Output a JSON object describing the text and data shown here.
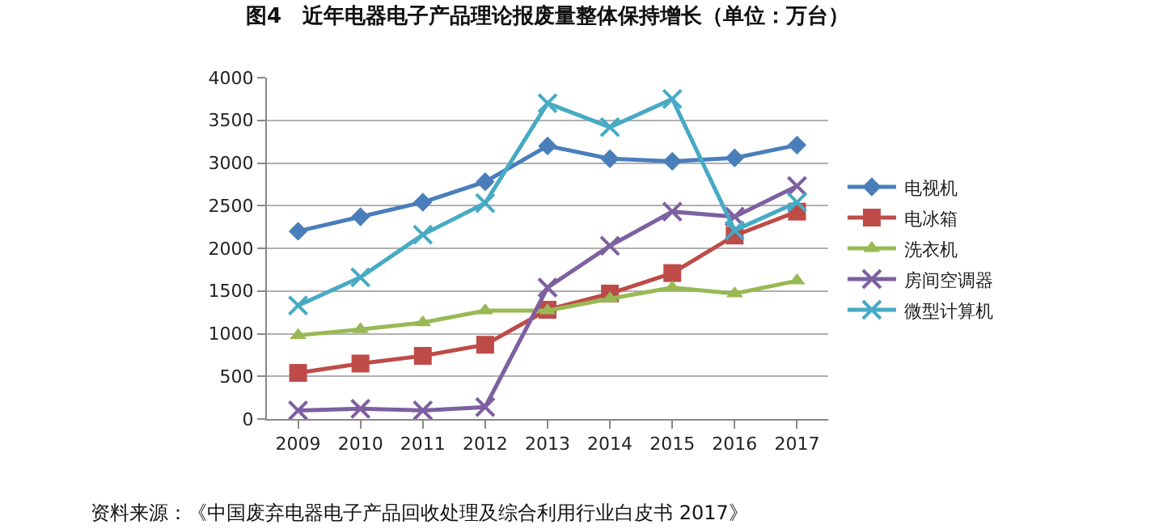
{
  "chart_data": {
    "type": "line",
    "title": "图4　近年电器电子产品理论报废量整体保持增长（单位：万台）",
    "categories": [
      "2009",
      "2010",
      "2011",
      "2012",
      "2013",
      "2014",
      "2015",
      "2016",
      "2017"
    ],
    "series": [
      {
        "name": "电视机",
        "color": "#4a7ebb",
        "marker": "diamond",
        "values": [
          2200,
          2370,
          2540,
          2780,
          3200,
          3050,
          3020,
          3060,
          3210
        ]
      },
      {
        "name": "电冰箱",
        "color": "#be4b48",
        "marker": "square",
        "values": [
          540,
          650,
          740,
          870,
          1280,
          1470,
          1710,
          2150,
          2430
        ]
      },
      {
        "name": "洗衣机",
        "color": "#98b954",
        "marker": "triangle",
        "values": [
          980,
          1050,
          1130,
          1270,
          1270,
          1410,
          1540,
          1470,
          1620
        ]
      },
      {
        "name": "房间空调器",
        "color": "#7d60a0",
        "marker": "cross",
        "values": [
          100,
          120,
          100,
          140,
          1540,
          2030,
          2430,
          2370,
          2730
        ]
      },
      {
        "name": "微型计算机",
        "color": "#46aac5",
        "marker": "cross",
        "values": [
          1330,
          1660,
          2160,
          2530,
          3700,
          3420,
          3750,
          2210,
          2540
        ]
      }
    ],
    "ylim": [
      0,
      4000
    ],
    "yticks": [
      0,
      500,
      1000,
      1500,
      2000,
      2500,
      3000,
      3500,
      4000
    ],
    "grid": "y",
    "legend": "right",
    "annotations": [
      "资料来源：《中国废弃电器电子产品回收处理及综合利用行业白皮书 2017》"
    ]
  }
}
